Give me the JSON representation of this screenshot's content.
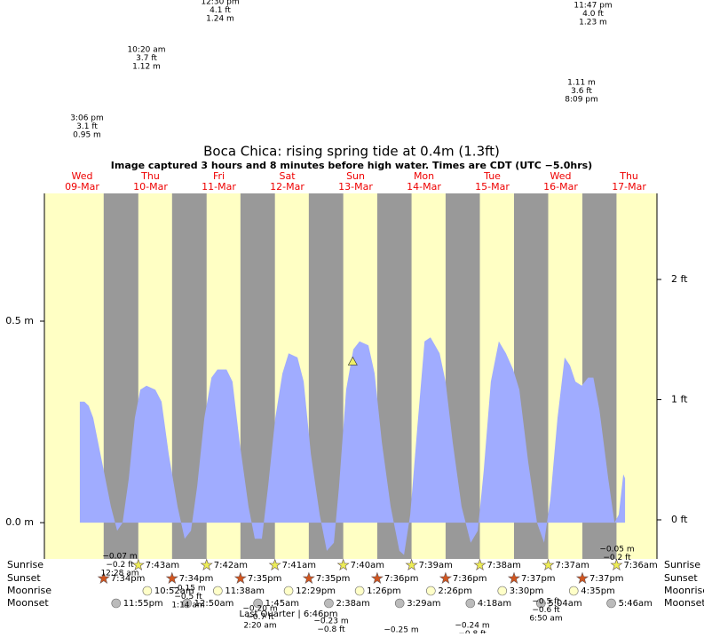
{
  "chart_data": {
    "type": "area",
    "title": "Boca Chica: rising  spring tide at 0.4m (1.3ft)",
    "subtitle": "Image captured 3 hours and 8 minutes before high water. Times are CDT (UTC −5.0hrs)",
    "color": "#a0acff",
    "x": [
      11.2,
      12.8,
      14.3,
      15.9,
      19.0,
      22.1,
      24.3,
      26.2,
      28.4,
      30.5,
      32.4,
      34.6,
      37.7,
      39.9,
      42.4,
      45.5,
      48.0,
      50.2,
      52.4,
      54.9,
      57.4,
      59.5,
      62.7,
      64.8,
      67.3,
      70.4,
      72.6,
      75.1,
      77.3,
      79.8,
      82.3,
      84.5,
      87.6,
      89.8,
      92.3,
      95.4,
      97.9,
      100.4,
      102.2,
      104.7,
      107.2,
      109.4,
      112.5,
      114.7,
      117.2,
      120.3,
      123.4,
      125.0,
      127.2,
      129.7,
      132.2,
      134.3,
      137.5,
      139.6,
      142.1,
      145.2,
      148.4,
      150.9,
      153.0,
      155.5,
      158.3,
      160.8,
      163.3,
      165.5,
      168.6,
      171.7,
      174.2,
      176.4,
      178.9,
      181.4,
      183.3,
      185.2,
      187.4,
      189.6,
      191.5,
      193.6,
      196.7,
      198.9,
      200.4,
      202.0,
      202.6
    ],
    "values": [
      0.3,
      0.3,
      0.29,
      0.26,
      0.15,
      0.04,
      -0.02,
      0.0,
      0.11,
      0.26,
      0.33,
      0.34,
      0.33,
      0.3,
      0.17,
      0.04,
      -0.04,
      -0.02,
      0.09,
      0.26,
      0.36,
      0.38,
      0.38,
      0.35,
      0.2,
      0.04,
      -0.04,
      -0.04,
      0.09,
      0.26,
      0.37,
      0.42,
      0.41,
      0.35,
      0.17,
      0.02,
      -0.07,
      -0.05,
      0.09,
      0.33,
      0.43,
      0.45,
      0.44,
      0.37,
      0.2,
      0.04,
      -0.07,
      -0.08,
      0.02,
      0.24,
      0.45,
      0.46,
      0.42,
      0.35,
      0.2,
      0.04,
      -0.05,
      -0.02,
      0.13,
      0.35,
      0.45,
      0.42,
      0.38,
      0.33,
      0.15,
      0.0,
      -0.05,
      0.06,
      0.26,
      0.41,
      0.39,
      0.35,
      0.34,
      0.36,
      0.36,
      0.28,
      0.11,
      0.0,
      0.02,
      0.12,
      0.11
    ],
    "xlim": [
      -1.25,
      213.8
    ],
    "ylim": [
      -0.09,
      0.817
    ],
    "yticks": [
      {
        "value": 0,
        "label": "0.0 m"
      },
      {
        "value": 0.5,
        "label": "0.5 m"
      }
    ],
    "y2lim": [
      -0.325,
      2.716
    ],
    "y2ticks": [
      {
        "value": 0,
        "label": "0 ft"
      },
      {
        "value": 1,
        "label": "1 ft"
      },
      {
        "value": 2,
        "label": "2 ft"
      }
    ],
    "days": [
      {
        "name": "Wed",
        "date": "09-Mar"
      },
      {
        "name": "Thu",
        "date": "10-Mar"
      },
      {
        "name": "Fri",
        "date": "11-Mar"
      },
      {
        "name": "Sat",
        "date": "12-Mar"
      },
      {
        "name": "Sun",
        "date": "13-Mar"
      },
      {
        "name": "Mon",
        "date": "14-Mar"
      },
      {
        "name": "Tue",
        "date": "15-Mar"
      },
      {
        "name": "Wed",
        "date": "16-Mar"
      },
      {
        "name": "Thu",
        "date": "17-Mar"
      }
    ],
    "current": {
      "x": 107.0,
      "value": 0.4
    },
    "row_labels": [
      "Sunrise",
      "Sunset",
      "Moonrise",
      "Moonset"
    ],
    "sunrise": {
      "x": [
        31.72,
        55.7,
        79.68,
        103.67,
        127.65,
        151.63,
        175.62,
        199.6
      ],
      "labels": [
        "7:43am",
        "7:42am",
        "7:41am",
        "7:40am",
        "7:39am",
        "7:38am",
        "7:37am",
        "7:36am"
      ]
    },
    "sunset": {
      "x": [
        19.57,
        43.57,
        67.58,
        91.58,
        115.6,
        139.6,
        163.62,
        187.62
      ],
      "labels": [
        "7:34pm",
        "7:34pm",
        "7:35pm",
        "7:35pm",
        "7:36pm",
        "7:36pm",
        "7:37pm",
        "7:37pm"
      ]
    },
    "moonrise": {
      "x": [
        34.87,
        59.63,
        84.48,
        109.43,
        134.43,
        159.5,
        184.58
      ],
      "labels": [
        "10:52am",
        "11:38am",
        "12:29pm",
        "1:26pm",
        "2:26pm",
        "3:30pm",
        "4:35pm"
      ]
    },
    "moonset": {
      "x": [
        23.92,
        48.83,
        73.75,
        98.63,
        123.48,
        148.3,
        173.07,
        197.77
      ],
      "labels": [
        "11:55pm",
        "12:50am",
        "1:45am",
        "2:38am",
        "3:29am",
        "4:18am",
        "5:04am",
        "5:46am"
      ]
    },
    "moon_phase": "Last Quarter | 6:46pm",
    "annotations": [
      [
        "12:30 pm",
        "4.1 ft",
        "1.24 m"
      ],
      [
        "11:47 pm",
        "4.0 ft",
        "1.23 m"
      ],
      [
        "10:20 am",
        "3.7 ft",
        "1.12 m"
      ],
      [
        "1.11 m",
        "3.6 ft",
        "8:09 pm"
      ],
      [
        "3:06 pm",
        "3.1 ft",
        "0.95 m"
      ],
      [
        "−0.07 m",
        "−0.2 ft",
        "12:28 am"
      ],
      [
        "−0.15 m",
        "−0.5 ft",
        "1:14 am"
      ],
      [
        "−0.20 m",
        "−0.7 ft",
        "2:20 am"
      ],
      [
        "−0.23 m",
        "−0.8 ft"
      ],
      [
        "−0.25 m"
      ],
      [
        "−0.24 m",
        "−0.8 ft"
      ],
      [
        "−0.5 ft",
        "−0.6 ft",
        "6:50 am"
      ],
      [
        "−0.05 m",
        "−0.2 ft"
      ]
    ]
  }
}
